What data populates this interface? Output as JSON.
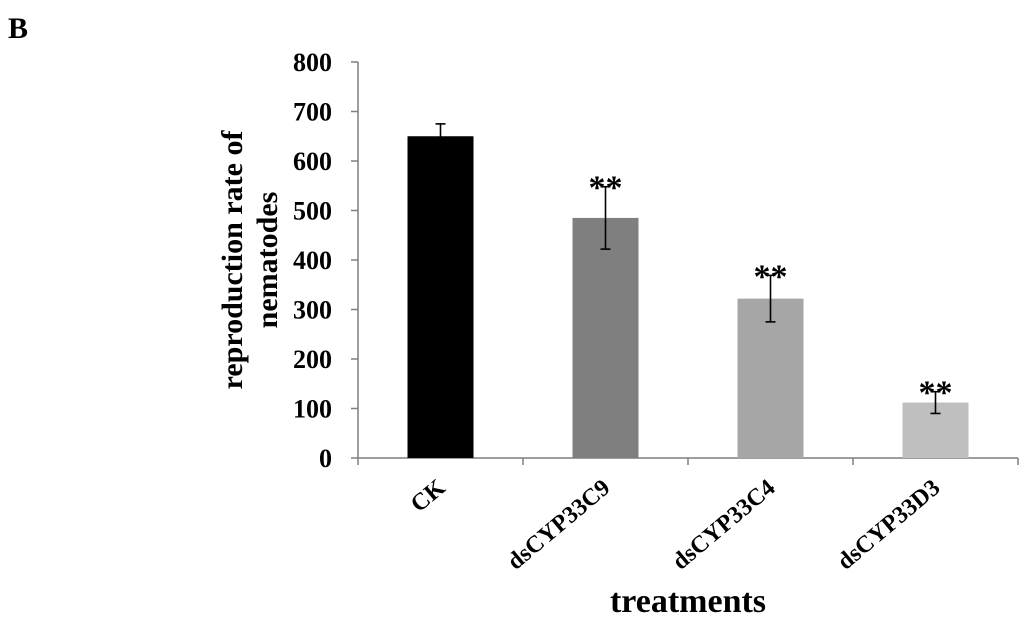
{
  "panel_label": "B",
  "chart_data": {
    "type": "bar",
    "title": "",
    "xlabel": "treatments",
    "ylabel_lines": [
      "reproduction rate of",
      "nematodes"
    ],
    "categories": [
      "CK",
      "dsCYP33C9",
      "dsCYP33C4",
      "dsCYP33D3"
    ],
    "values": [
      650,
      485,
      322,
      112
    ],
    "errors": [
      25,
      63,
      47,
      22
    ],
    "significance": [
      "",
      "**",
      "**",
      "**"
    ],
    "bar_colors": [
      "#000000",
      "#7f7f7f",
      "#a6a6a6",
      "#bfbfbf"
    ],
    "ylim": [
      0,
      800
    ],
    "yticks": [
      0,
      100,
      200,
      300,
      400,
      500,
      600,
      700,
      800
    ],
    "grid": false,
    "legend": "none"
  }
}
